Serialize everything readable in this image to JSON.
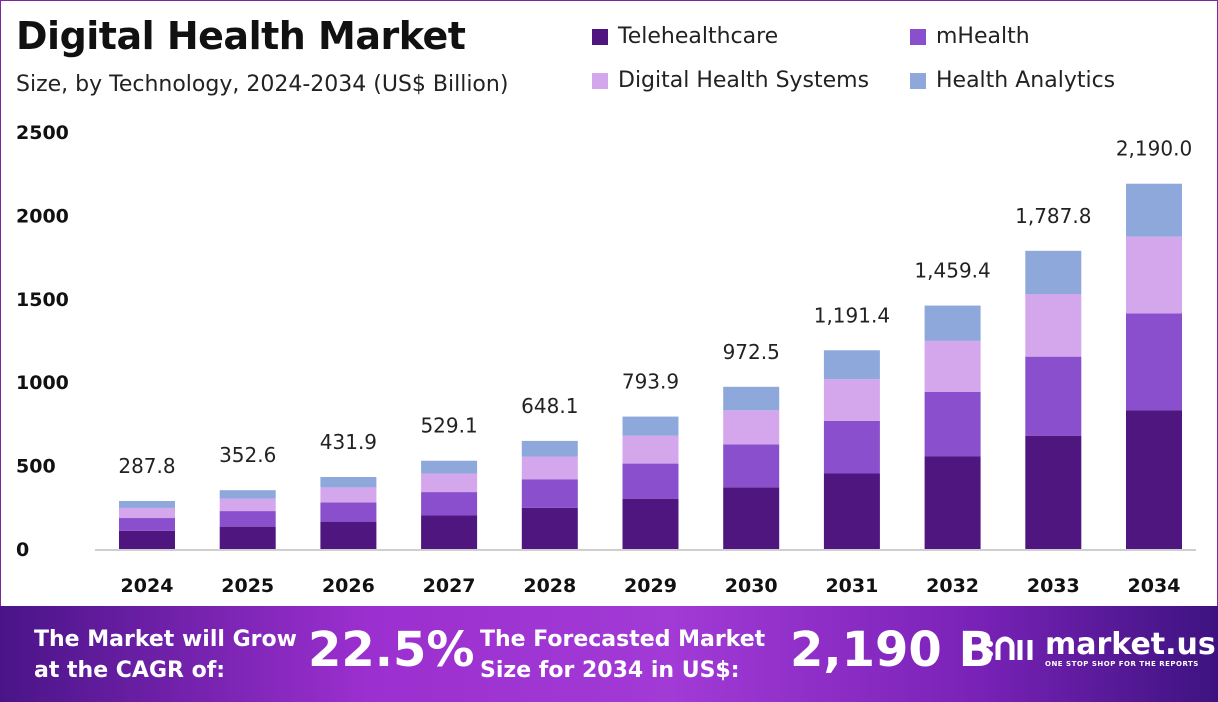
{
  "chart_data": {
    "type": "bar",
    "stacked": true,
    "title": "Digital Health Market",
    "subtitle": "Size, by Technology, 2024-2034 (US$ Billion)",
    "categories": [
      "2024",
      "2025",
      "2026",
      "2027",
      "2028",
      "2029",
      "2030",
      "2031",
      "2032",
      "2033",
      "2034"
    ],
    "series": [
      {
        "name": "Telehealthcare",
        "color": "#4f1680",
        "values": [
          109.4,
          134.0,
          164.1,
          201.1,
          246.3,
          301.7,
          369.6,
          452.7,
          554.6,
          679.4,
          832.2
        ]
      },
      {
        "name": "mHealth",
        "color": "#8a4fcc",
        "values": [
          76.3,
          93.4,
          114.5,
          140.2,
          171.7,
          210.4,
          257.7,
          315.7,
          386.7,
          473.8,
          580.4
        ]
      },
      {
        "name": "Digital Health Systems",
        "color": "#d4a6ec",
        "values": [
          60.4,
          74.0,
          90.7,
          111.1,
          136.1,
          166.7,
          204.2,
          250.2,
          306.5,
          375.4,
          459.9
        ]
      },
      {
        "name": "Health Analytics",
        "color": "#8fa8dc",
        "values": [
          41.7,
          51.2,
          62.6,
          76.7,
          94.0,
          115.1,
          141.0,
          172.8,
          211.6,
          259.2,
          317.5
        ]
      }
    ],
    "totals": [
      287.8,
      352.6,
      431.9,
      529.1,
      648.1,
      793.9,
      972.5,
      1191.4,
      1459.4,
      1787.8,
      2190.0
    ],
    "total_labels": [
      "287.8",
      "352.6",
      "431.9",
      "529.1",
      "648.1",
      "793.9",
      "972.5",
      "1,191.4",
      "1,459.4",
      "1,787.8",
      "2,190.0"
    ],
    "yticks": [
      0,
      500,
      1000,
      1500,
      2000,
      2500
    ],
    "ylim": [
      0,
      2500
    ],
    "grid": false,
    "legend_position": "top-right",
    "xlabel": "",
    "ylabel": ""
  },
  "banner": {
    "cagr_text_1": "The Market will Grow",
    "cagr_text_2": "at the CAGR of:",
    "cagr_value": "22.5%",
    "forecast_text_1": "The Forecasted Market",
    "forecast_text_2": "Size for 2034 in US$:",
    "forecast_value": "2,190 B",
    "logo_name": "market.us",
    "logo_tagline": "ONE STOP SHOP FOR THE REPORTS"
  }
}
